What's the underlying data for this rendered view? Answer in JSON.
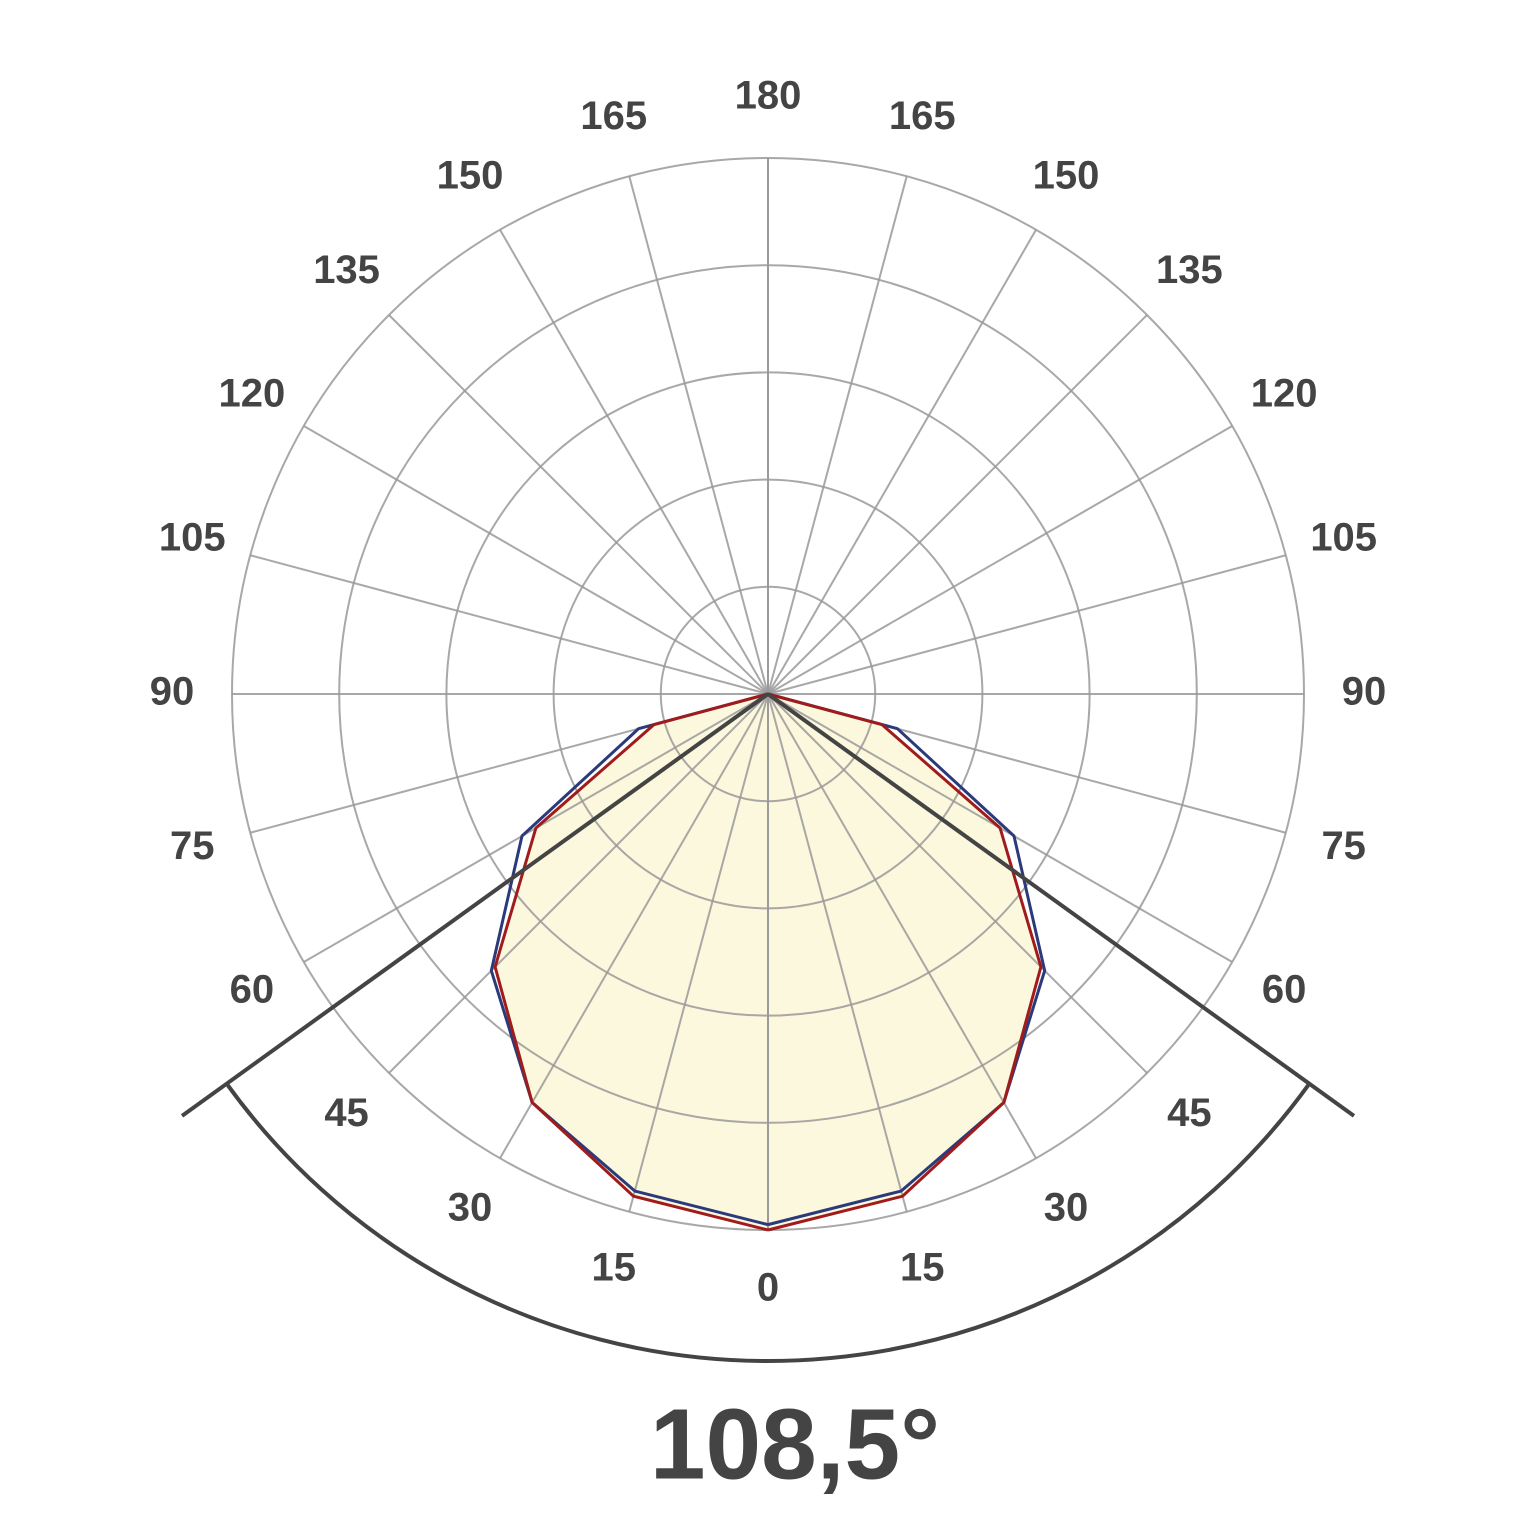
{
  "chart_data": {
    "type": "polar",
    "angle_ticks": [
      0,
      15,
      30,
      45,
      60,
      75,
      90,
      105,
      120,
      135,
      150,
      165,
      180
    ],
    "rlim": [
      0,
      100
    ],
    "rticks": [
      20,
      40,
      60,
      80,
      100
    ],
    "grid": true,
    "angles": [
      0,
      15,
      30,
      45,
      60,
      75,
      90
    ],
    "series": [
      {
        "color": "#2b3a7a",
        "values": [
          99,
          96,
          88,
          73,
          53,
          25,
          0
        ]
      },
      {
        "color": "#a01c1c",
        "values": [
          100,
          97,
          88,
          72,
          50,
          22,
          0
        ],
        "fill": "#fbf6d2"
      }
    ],
    "beam": {
      "value": 108.5,
      "label": "108,5°"
    }
  }
}
